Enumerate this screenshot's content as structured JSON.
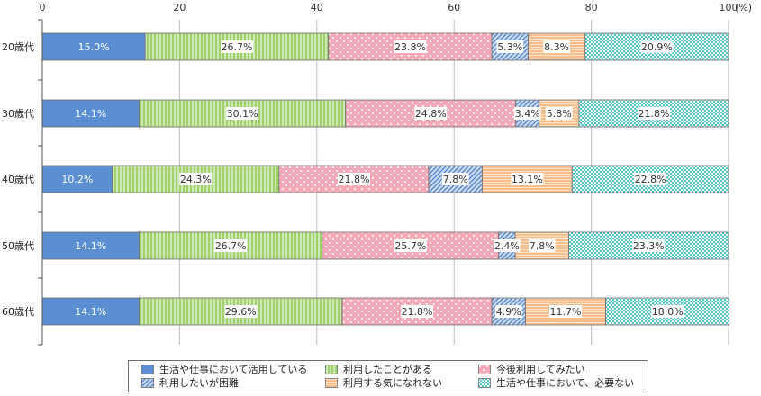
{
  "chart_data": {
    "type": "bar",
    "orientation": "horizontal",
    "stacked": true,
    "x_unit_label": "(%)",
    "xlim": [
      0,
      100
    ],
    "x_ticks": [
      "0",
      "20",
      "40",
      "60",
      "80",
      "100"
    ],
    "categories": [
      "20歳代",
      "30歳代",
      "40歳代",
      "50歳代",
      "60歳代"
    ],
    "series": [
      {
        "name": "生活や仕事において活用している",
        "values": [
          15.0,
          14.1,
          10.2,
          14.1,
          14.1
        ],
        "labels": [
          "15.0%",
          "14.1%",
          "10.2%",
          "14.1%",
          "14.1%"
        ],
        "color": "#5b8fd1",
        "pattern": "solid"
      },
      {
        "name": "利用したことがある",
        "values": [
          26.7,
          30.1,
          24.3,
          26.7,
          29.6
        ],
        "labels": [
          "26.7%",
          "30.1%",
          "24.3%",
          "26.7%",
          "29.6%"
        ],
        "color": "#9ed06b",
        "pattern": "vlines"
      },
      {
        "name": "今後利用してみたい",
        "values": [
          23.8,
          24.8,
          21.8,
          25.7,
          21.8
        ],
        "labels": [
          "23.8%",
          "24.8%",
          "21.8%",
          "25.7%",
          "21.8%"
        ],
        "color": "#f7a8b6",
        "pattern": "dots"
      },
      {
        "name": "利用したいが困難",
        "values": [
          5.3,
          3.4,
          7.8,
          2.4,
          4.9
        ],
        "labels": [
          "5.3%",
          "3.4%",
          "7.8%",
          "2.4%",
          "4.9%"
        ],
        "color": "#8fb0e3",
        "pattern": "diag"
      },
      {
        "name": "利用する気になれない",
        "values": [
          8.3,
          5.8,
          13.1,
          7.8,
          11.7
        ],
        "labels": [
          "8.3%",
          "5.8%",
          "13.1%",
          "7.8%",
          "11.7%"
        ],
        "color": "#f9be8b",
        "pattern": "hlines"
      },
      {
        "name": "生活や仕事において、必要ない",
        "values": [
          20.9,
          21.8,
          22.8,
          23.3,
          18.0
        ],
        "labels": [
          "20.9%",
          "21.8%",
          "22.8%",
          "23.3%",
          "18.0%"
        ],
        "color": "#6fcfd3",
        "pattern": "grid"
      }
    ],
    "grid": true,
    "legend_position": "bottom"
  }
}
